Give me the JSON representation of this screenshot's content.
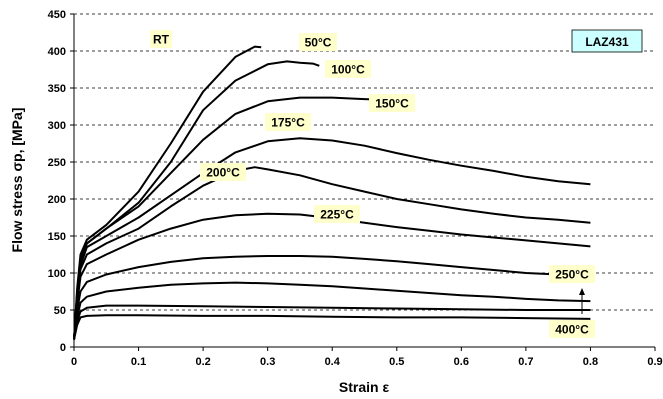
{
  "chart_data": {
    "type": "line",
    "title": "",
    "xlabel": "Strain ε",
    "ylabel": "Flow stress σp, [MPa]",
    "xlim": [
      0,
      0.9
    ],
    "ylim": [
      0,
      450
    ],
    "x_ticks": [
      "0",
      "0.1",
      "0.2",
      "0.3",
      "0.4",
      "0.5",
      "0.6",
      "0.7",
      "0.8",
      "0.9"
    ],
    "y_ticks": [
      "0",
      "50",
      "100",
      "150",
      "200",
      "250",
      "300",
      "350",
      "400",
      "450"
    ],
    "grid": "horizontal",
    "material_label": "LAZ431",
    "series": [
      {
        "name": "RT",
        "x": [
          0,
          0.005,
          0.01,
          0.02,
          0.05,
          0.1,
          0.15,
          0.2,
          0.25,
          0.28,
          0.29
        ],
        "y": [
          10,
          80,
          125,
          145,
          165,
          210,
          275,
          345,
          392,
          406,
          405
        ]
      },
      {
        "name": "50°C",
        "x": [
          0,
          0.005,
          0.01,
          0.02,
          0.05,
          0.1,
          0.15,
          0.2,
          0.25,
          0.3,
          0.33,
          0.35,
          0.37,
          0.38
        ],
        "y": [
          10,
          75,
          120,
          140,
          160,
          195,
          250,
          320,
          360,
          382,
          386,
          384,
          383,
          380
        ]
      },
      {
        "name": "100°C",
        "x": [
          0,
          0.005,
          0.01,
          0.02,
          0.05,
          0.1,
          0.15,
          0.2,
          0.25,
          0.3,
          0.35,
          0.4,
          0.45,
          0.49
        ],
        "y": [
          10,
          70,
          115,
          140,
          160,
          190,
          235,
          280,
          315,
          332,
          337,
          337,
          335,
          334
        ]
      },
      {
        "name": "150°C",
        "x": [
          0,
          0.005,
          0.01,
          0.02,
          0.05,
          0.1,
          0.15,
          0.2,
          0.25,
          0.3,
          0.35,
          0.4,
          0.45,
          0.5,
          0.55,
          0.6,
          0.65,
          0.7,
          0.75,
          0.8
        ],
        "y": [
          10,
          70,
          110,
          135,
          150,
          175,
          205,
          235,
          263,
          278,
          282,
          279,
          272,
          262,
          253,
          245,
          238,
          230,
          224,
          220
        ]
      },
      {
        "name": "175°C",
        "x": [
          0,
          0.005,
          0.01,
          0.02,
          0.05,
          0.1,
          0.15,
          0.2,
          0.25,
          0.28,
          0.3,
          0.35,
          0.4,
          0.45,
          0.5,
          0.55,
          0.6,
          0.65,
          0.7,
          0.75,
          0.8
        ],
        "y": [
          10,
          65,
          105,
          125,
          140,
          160,
          190,
          218,
          238,
          243,
          240,
          232,
          220,
          210,
          200,
          193,
          186,
          180,
          175,
          172,
          168
        ]
      },
      {
        "name": "200°C",
        "x": [
          0,
          0.005,
          0.01,
          0.02,
          0.05,
          0.1,
          0.15,
          0.2,
          0.25,
          0.3,
          0.35,
          0.4,
          0.45,
          0.5,
          0.55,
          0.6,
          0.65,
          0.7,
          0.75,
          0.8
        ],
        "y": [
          10,
          60,
          95,
          112,
          125,
          145,
          160,
          172,
          178,
          180,
          179,
          174,
          168,
          162,
          157,
          152,
          148,
          144,
          140,
          136
        ]
      },
      {
        "name": "225°C",
        "x": [
          0,
          0.005,
          0.01,
          0.02,
          0.05,
          0.1,
          0.15,
          0.2,
          0.25,
          0.3,
          0.35,
          0.4,
          0.45,
          0.5,
          0.55,
          0.6,
          0.65,
          0.7,
          0.75,
          0.8
        ],
        "y": [
          10,
          50,
          75,
          88,
          98,
          108,
          115,
          120,
          122,
          123,
          123,
          122,
          119,
          116,
          112,
          108,
          104,
          100,
          98,
          94
        ]
      },
      {
        "name": "250°C",
        "x": [
          0,
          0.005,
          0.01,
          0.02,
          0.05,
          0.1,
          0.15,
          0.2,
          0.25,
          0.3,
          0.35,
          0.4,
          0.45,
          0.5,
          0.55,
          0.6,
          0.65,
          0.7,
          0.75,
          0.8
        ],
        "y": [
          10,
          40,
          60,
          68,
          75,
          80,
          84,
          86,
          87,
          86,
          84,
          82,
          79,
          76,
          73,
          70,
          68,
          65,
          63,
          62
        ]
      },
      {
        "name": "",
        "x": [
          0,
          0.005,
          0.01,
          0.02,
          0.05,
          0.1,
          0.2,
          0.3,
          0.4,
          0.5,
          0.6,
          0.7,
          0.8
        ],
        "y": [
          10,
          35,
          48,
          53,
          56,
          56,
          55,
          54,
          53,
          52,
          51,
          50,
          50
        ]
      },
      {
        "name": "400°C",
        "x": [
          0,
          0.005,
          0.01,
          0.02,
          0.05,
          0.1,
          0.2,
          0.3,
          0.4,
          0.5,
          0.6,
          0.7,
          0.8
        ],
        "y": [
          10,
          30,
          40,
          42,
          43,
          43,
          42,
          42,
          41,
          40,
          40,
          39,
          38
        ]
      }
    ]
  },
  "colors": {
    "line": "#000000",
    "label_fill": "#ffffcc",
    "material_fill": "#ccffff",
    "background": "#ffffff"
  }
}
